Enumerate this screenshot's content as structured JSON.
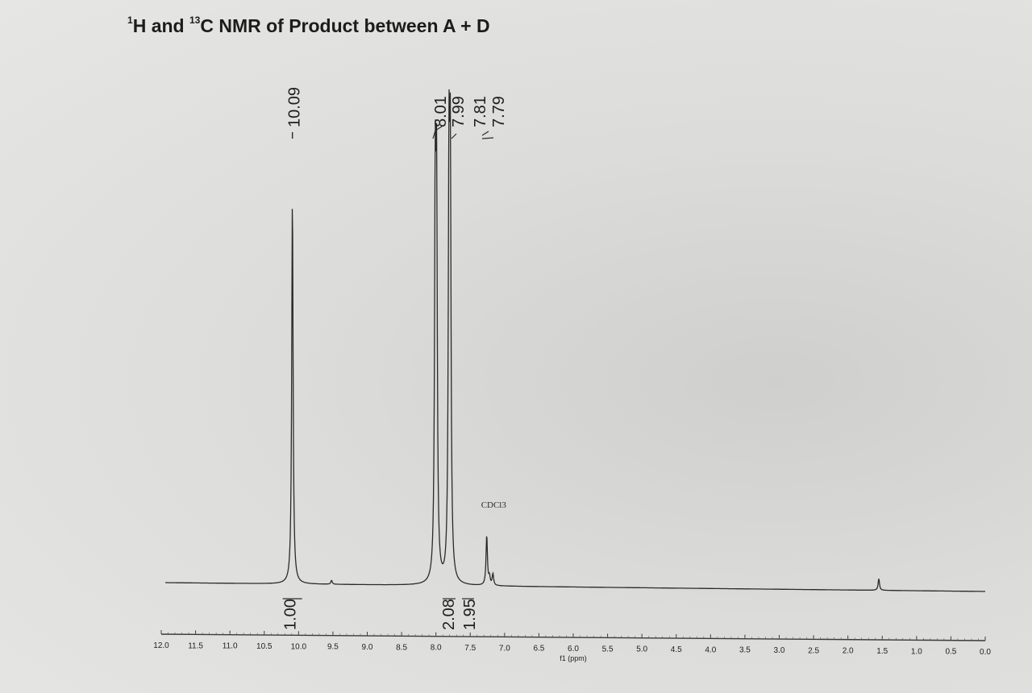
{
  "title": {
    "sup1": "1",
    "part1": "H and ",
    "sup2": "13",
    "part2": "C NMR of Product between A + D"
  },
  "chart_data": {
    "type": "line",
    "title": "1H and 13C NMR of Product between A + D",
    "xlabel": "f1 (ppm)",
    "ylabel": "",
    "xlim": [
      12.0,
      0.0
    ],
    "x_reversed": true,
    "ticks": [
      "12.0",
      "11.5",
      "11.0",
      "10.5",
      "10.0",
      "9.5",
      "9.0",
      "8.5",
      "8.0",
      "7.5",
      "7.0",
      "6.5",
      "6.0",
      "5.5",
      "5.0",
      "4.5",
      "4.0",
      "3.5",
      "3.0",
      "2.5",
      "2.0",
      "1.5",
      "1.0",
      "0.5",
      "0.0"
    ],
    "grid": false,
    "peaks": [
      {
        "ppm": 10.09,
        "height": 1.0
      },
      {
        "ppm": 8.01,
        "height": 0.94
      },
      {
        "ppm": 7.99,
        "height": 0.94
      },
      {
        "ppm": 7.81,
        "height": 1.0
      },
      {
        "ppm": 7.79,
        "height": 1.0
      },
      {
        "ppm": 7.26,
        "height": 0.13
      },
      {
        "ppm": 7.22,
        "height": 0.02
      },
      {
        "ppm": 7.17,
        "height": 0.03
      },
      {
        "ppm": 9.52,
        "height": 0.01
      },
      {
        "ppm": 1.55,
        "height": 0.03
      }
    ],
    "peak_labels": [
      "10.09",
      "8.01",
      "7.99",
      "7.81",
      "7.79"
    ],
    "integrations": [
      {
        "ppm": 10.09,
        "label": "1.00"
      },
      {
        "ppm": 8.0,
        "label": "2.08"
      },
      {
        "ppm": 7.8,
        "label": "1.95"
      }
    ],
    "annotations": [
      {
        "ppm": 7.26,
        "text": "CDCl3"
      }
    ]
  }
}
